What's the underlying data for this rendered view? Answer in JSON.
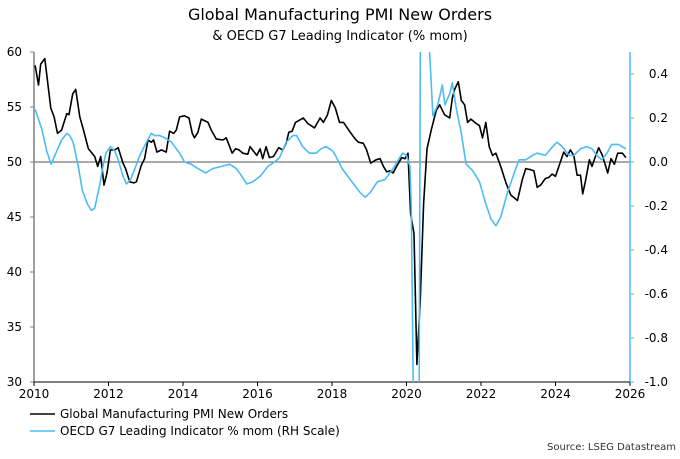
{
  "chart_data": {
    "type": "line",
    "title": "Global Manufacturing PMI New Orders",
    "subtitle": "& OECD G7 Leading Indicator (% mom)",
    "source": "Source: LSEG Datastream",
    "xlim": [
      2010,
      2026
    ],
    "x_ticks": [
      "2010",
      "2012",
      "2014",
      "2016",
      "2018",
      "2020",
      "2022",
      "2024",
      "2026"
    ],
    "y_left": {
      "lim": [
        30,
        60
      ],
      "ticks": [
        "30",
        "35",
        "40",
        "45",
        "50",
        "55",
        "60"
      ]
    },
    "y_right": {
      "lim": [
        -1.0,
        0.5
      ],
      "ticks": [
        "-1.0",
        "-0.8",
        "-0.6",
        "-0.4",
        "-0.2",
        "0.0",
        "0.2",
        "0.4"
      ]
    },
    "reference_line": {
      "axis": "left",
      "value": 50
    },
    "grid": false,
    "legend_placement": "bottom-left",
    "series": [
      {
        "name": "Global Manufacturing PMI New Orders",
        "axis": "left",
        "color": "#000000",
        "points": [
          [
            2010.03,
            58.8
          ],
          [
            2010.12,
            57.0
          ],
          [
            2010.18,
            58.9
          ],
          [
            2010.29,
            59.4
          ],
          [
            2010.45,
            54.9
          ],
          [
            2010.54,
            54.1
          ],
          [
            2010.63,
            52.6
          ],
          [
            2010.74,
            52.9
          ],
          [
            2010.88,
            54.4
          ],
          [
            2010.94,
            54.3
          ],
          [
            2011.04,
            56.2
          ],
          [
            2011.12,
            56.6
          ],
          [
            2011.23,
            54.1
          ],
          [
            2011.32,
            53.0
          ],
          [
            2011.46,
            51.2
          ],
          [
            2011.63,
            50.5
          ],
          [
            2011.71,
            49.6
          ],
          [
            2011.79,
            50.5
          ],
          [
            2011.88,
            47.9
          ],
          [
            2011.96,
            49.0
          ],
          [
            2012.05,
            51.1
          ],
          [
            2012.17,
            51.1
          ],
          [
            2012.26,
            51.3
          ],
          [
            2012.39,
            49.9
          ],
          [
            2012.46,
            49.4
          ],
          [
            2012.57,
            48.2
          ],
          [
            2012.68,
            48.1
          ],
          [
            2012.75,
            48.2
          ],
          [
            2012.88,
            49.7
          ],
          [
            2012.97,
            50.3
          ],
          [
            2013.06,
            52.0
          ],
          [
            2013.15,
            51.8
          ],
          [
            2013.21,
            52.0
          ],
          [
            2013.3,
            50.9
          ],
          [
            2013.42,
            51.1
          ],
          [
            2013.55,
            50.9
          ],
          [
            2013.64,
            52.8
          ],
          [
            2013.75,
            52.6
          ],
          [
            2013.82,
            52.9
          ],
          [
            2013.91,
            54.1
          ],
          [
            2014.04,
            54.2
          ],
          [
            2014.16,
            54.0
          ],
          [
            2014.25,
            52.6
          ],
          [
            2014.31,
            52.2
          ],
          [
            2014.4,
            52.7
          ],
          [
            2014.49,
            53.9
          ],
          [
            2014.67,
            53.6
          ],
          [
            2014.76,
            52.9
          ],
          [
            2014.89,
            52.1
          ],
          [
            2015.07,
            52.0
          ],
          [
            2015.16,
            52.2
          ],
          [
            2015.25,
            51.4
          ],
          [
            2015.32,
            50.8
          ],
          [
            2015.41,
            51.2
          ],
          [
            2015.5,
            51.1
          ],
          [
            2015.61,
            50.8
          ],
          [
            2015.74,
            50.7
          ],
          [
            2015.8,
            51.4
          ],
          [
            2015.98,
            50.6
          ],
          [
            2016.07,
            51.2
          ],
          [
            2016.14,
            50.3
          ],
          [
            2016.23,
            51.4
          ],
          [
            2016.32,
            50.4
          ],
          [
            2016.43,
            50.5
          ],
          [
            2016.57,
            51.3
          ],
          [
            2016.68,
            51.1
          ],
          [
            2016.77,
            51.7
          ],
          [
            2016.84,
            52.7
          ],
          [
            2016.93,
            52.8
          ],
          [
            2017.02,
            53.6
          ],
          [
            2017.23,
            54.0
          ],
          [
            2017.35,
            53.5
          ],
          [
            2017.53,
            53.1
          ],
          [
            2017.68,
            54.0
          ],
          [
            2017.77,
            53.6
          ],
          [
            2017.88,
            54.3
          ],
          [
            2017.98,
            55.6
          ],
          [
            2018.09,
            54.9
          ],
          [
            2018.2,
            53.6
          ],
          [
            2018.31,
            53.6
          ],
          [
            2018.49,
            52.7
          ],
          [
            2018.62,
            52.1
          ],
          [
            2018.71,
            51.8
          ],
          [
            2018.84,
            51.7
          ],
          [
            2018.93,
            51.1
          ],
          [
            2019.04,
            49.9
          ],
          [
            2019.18,
            50.2
          ],
          [
            2019.29,
            50.3
          ],
          [
            2019.38,
            49.6
          ],
          [
            2019.47,
            49.1
          ],
          [
            2019.56,
            49.2
          ],
          [
            2019.64,
            49.0
          ],
          [
            2019.75,
            49.7
          ],
          [
            2019.87,
            50.4
          ],
          [
            2019.96,
            50.3
          ],
          [
            2020.04,
            50.8
          ],
          [
            2020.11,
            45.3
          ],
          [
            2020.2,
            43.5
          ],
          [
            2020.28,
            31.6
          ],
          [
            2020.37,
            37.5
          ],
          [
            2020.46,
            46.2
          ],
          [
            2020.55,
            51.2
          ],
          [
            2020.67,
            53.0
          ],
          [
            2020.8,
            54.7
          ],
          [
            2020.89,
            55.2
          ],
          [
            2021.02,
            54.3
          ],
          [
            2021.16,
            54.0
          ],
          [
            2021.23,
            55.8
          ],
          [
            2021.29,
            56.6
          ],
          [
            2021.39,
            57.3
          ],
          [
            2021.47,
            55.6
          ],
          [
            2021.56,
            55.2
          ],
          [
            2021.64,
            53.6
          ],
          [
            2021.73,
            53.9
          ],
          [
            2021.87,
            53.5
          ],
          [
            2021.96,
            53.3
          ],
          [
            2022.04,
            52.2
          ],
          [
            2022.13,
            53.6
          ],
          [
            2022.22,
            51.4
          ],
          [
            2022.31,
            50.6
          ],
          [
            2022.4,
            50.8
          ],
          [
            2022.53,
            49.6
          ],
          [
            2022.67,
            48.1
          ],
          [
            2022.8,
            47.0
          ],
          [
            2022.98,
            46.5
          ],
          [
            2023.11,
            48.4
          ],
          [
            2023.2,
            49.4
          ],
          [
            2023.33,
            49.3
          ],
          [
            2023.42,
            49.2
          ],
          [
            2023.51,
            47.7
          ],
          [
            2023.6,
            47.9
          ],
          [
            2023.73,
            48.5
          ],
          [
            2023.82,
            48.6
          ],
          [
            2023.91,
            48.9
          ],
          [
            2024.0,
            48.7
          ],
          [
            2024.09,
            49.6
          ],
          [
            2024.22,
            50.9
          ],
          [
            2024.31,
            50.5
          ],
          [
            2024.4,
            51.1
          ],
          [
            2024.49,
            50.6
          ],
          [
            2024.58,
            48.8
          ],
          [
            2024.67,
            48.8
          ],
          [
            2024.73,
            47.1
          ],
          [
            2024.8,
            48.2
          ],
          [
            2024.91,
            50.2
          ],
          [
            2024.98,
            49.6
          ],
          [
            2025.07,
            50.5
          ],
          [
            2025.16,
            51.3
          ],
          [
            2025.26,
            50.6
          ],
          [
            2025.4,
            49.0
          ],
          [
            2025.49,
            50.3
          ],
          [
            2025.58,
            49.8
          ],
          [
            2025.67,
            50.8
          ],
          [
            2025.8,
            50.8
          ],
          [
            2025.89,
            50.4
          ]
        ]
      },
      {
        "name": "OECD G7 Leading Indicator % mom (RH Scale)",
        "axis": "right",
        "color": "#4dbbf5",
        "points": [
          [
            2010.03,
            0.24
          ],
          [
            2010.21,
            0.15
          ],
          [
            2010.34,
            0.05
          ],
          [
            2010.46,
            -0.01
          ],
          [
            2010.56,
            0.03
          ],
          [
            2010.74,
            0.1
          ],
          [
            2010.88,
            0.13
          ],
          [
            2010.96,
            0.12
          ],
          [
            2011.05,
            0.09
          ],
          [
            2011.19,
            -0.02
          ],
          [
            2011.3,
            -0.13
          ],
          [
            2011.43,
            -0.19
          ],
          [
            2011.54,
            -0.22
          ],
          [
            2011.63,
            -0.21
          ],
          [
            2011.77,
            -0.1
          ],
          [
            2011.86,
            -0.01
          ],
          [
            2011.93,
            0.04
          ],
          [
            2012.05,
            0.07
          ],
          [
            2012.17,
            0.05
          ],
          [
            2012.26,
            0.01
          ],
          [
            2012.38,
            -0.06
          ],
          [
            2012.48,
            -0.1
          ],
          [
            2012.59,
            -0.08
          ],
          [
            2012.71,
            -0.03
          ],
          [
            2012.84,
            0.03
          ],
          [
            2013.02,
            0.09
          ],
          [
            2013.15,
            0.13
          ],
          [
            2013.24,
            0.12
          ],
          [
            2013.38,
            0.12
          ],
          [
            2013.51,
            0.11
          ],
          [
            2013.69,
            0.09
          ],
          [
            2013.91,
            0.04
          ],
          [
            2014.04,
            0.0
          ],
          [
            2014.22,
            -0.01
          ],
          [
            2014.4,
            -0.03
          ],
          [
            2014.61,
            -0.05
          ],
          [
            2014.8,
            -0.03
          ],
          [
            2015.03,
            -0.02
          ],
          [
            2015.25,
            -0.01
          ],
          [
            2015.43,
            -0.03
          ],
          [
            2015.56,
            -0.06
          ],
          [
            2015.71,
            -0.1
          ],
          [
            2015.88,
            -0.09
          ],
          [
            2016.1,
            -0.06
          ],
          [
            2016.28,
            -0.02
          ],
          [
            2016.46,
            0.0
          ],
          [
            2016.59,
            0.02
          ],
          [
            2016.77,
            0.09
          ],
          [
            2016.95,
            0.12
          ],
          [
            2017.05,
            0.12
          ],
          [
            2017.21,
            0.07
          ],
          [
            2017.39,
            0.04
          ],
          [
            2017.57,
            0.04
          ],
          [
            2017.71,
            0.06
          ],
          [
            2017.84,
            0.07
          ],
          [
            2018.02,
            0.05
          ],
          [
            2018.09,
            0.03
          ],
          [
            2018.27,
            -0.03
          ],
          [
            2018.49,
            -0.08
          ],
          [
            2018.76,
            -0.14
          ],
          [
            2018.89,
            -0.16
          ],
          [
            2019.02,
            -0.14
          ],
          [
            2019.22,
            -0.09
          ],
          [
            2019.42,
            -0.08
          ],
          [
            2019.64,
            -0.03
          ],
          [
            2019.89,
            0.04
          ],
          [
            2020.0,
            0.03
          ],
          [
            2020.09,
            -0.02
          ],
          [
            2020.13,
            -0.2
          ],
          [
            2020.18,
            -1.0
          ],
          [
            2020.22,
            -1.3
          ],
          [
            2020.3,
            -1.3
          ],
          [
            2020.34,
            -1.0
          ],
          [
            2020.37,
            0.5
          ],
          [
            2020.45,
            0.9
          ],
          [
            2020.55,
            0.8
          ],
          [
            2020.62,
            0.5
          ],
          [
            2020.71,
            0.21
          ],
          [
            2020.84,
            0.26
          ],
          [
            2020.96,
            0.35
          ],
          [
            2021.03,
            0.26
          ],
          [
            2021.16,
            0.31
          ],
          [
            2021.23,
            0.36
          ],
          [
            2021.33,
            0.25
          ],
          [
            2021.47,
            0.13
          ],
          [
            2021.6,
            -0.01
          ],
          [
            2021.78,
            -0.04
          ],
          [
            2021.96,
            -0.09
          ],
          [
            2022.13,
            -0.19
          ],
          [
            2022.27,
            -0.26
          ],
          [
            2022.4,
            -0.29
          ],
          [
            2022.53,
            -0.25
          ],
          [
            2022.71,
            -0.14
          ],
          [
            2022.89,
            -0.05
          ],
          [
            2023.02,
            0.01
          ],
          [
            2023.2,
            0.01
          ],
          [
            2023.38,
            0.03
          ],
          [
            2023.51,
            0.04
          ],
          [
            2023.73,
            0.03
          ],
          [
            2023.87,
            0.06
          ],
          [
            2024.04,
            0.09
          ],
          [
            2024.18,
            0.07
          ],
          [
            2024.36,
            0.03
          ],
          [
            2024.49,
            0.03
          ],
          [
            2024.67,
            0.06
          ],
          [
            2024.84,
            0.07
          ],
          [
            2024.98,
            0.06
          ],
          [
            2025.11,
            0.03
          ],
          [
            2025.24,
            0.01
          ],
          [
            2025.38,
            0.04
          ],
          [
            2025.51,
            0.08
          ],
          [
            2025.69,
            0.08
          ],
          [
            2025.89,
            0.06
          ]
        ]
      }
    ]
  }
}
